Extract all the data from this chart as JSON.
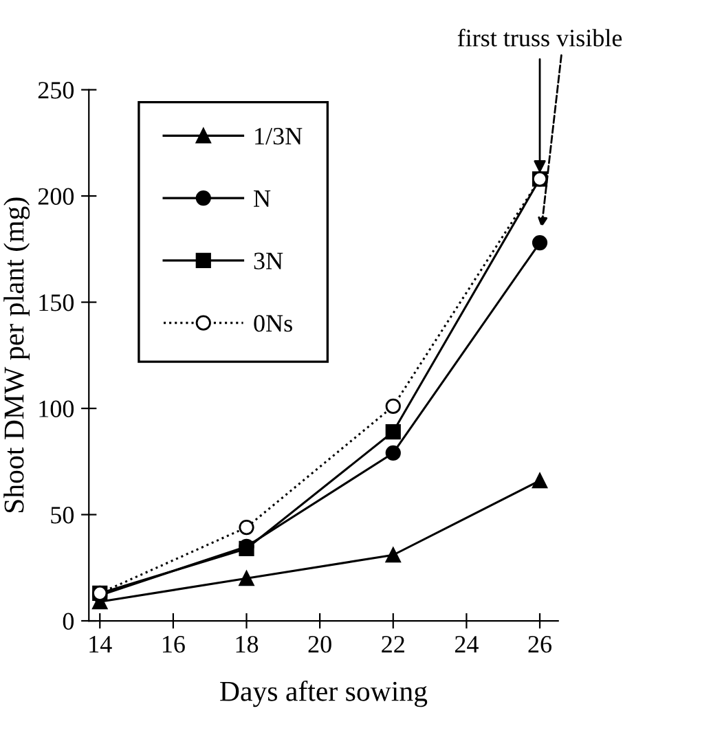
{
  "chart_data": {
    "type": "line",
    "xlabel": "Days after sowing",
    "ylabel": "Shoot DMW per plant (mg)",
    "x": [
      14,
      18,
      22,
      26
    ],
    "series": [
      {
        "name": "1/3N",
        "color": "#000000",
        "values": [
          9,
          20,
          31,
          66
        ],
        "marker": "triangle",
        "line_style": "solid"
      },
      {
        "name": "N",
        "color": "#000000",
        "values": [
          12,
          35,
          79,
          178
        ],
        "marker": "circle",
        "line_style": "solid"
      },
      {
        "name": "3N",
        "color": "#000000",
        "values": [
          13,
          34,
          89,
          208
        ],
        "marker": "square",
        "line_style": "solid"
      },
      {
        "name": "0Ns",
        "color": "#000000",
        "values": [
          13,
          44,
          101,
          208
        ],
        "marker": "circle",
        "line_style": "dotted"
      }
    ],
    "xlim": [
      13.7,
      26.5
    ],
    "ylim": [
      0,
      250
    ],
    "xticks": [
      14,
      16,
      18,
      20,
      22,
      24,
      26
    ],
    "yticks": [
      0,
      50,
      100,
      150,
      200,
      250
    ],
    "grid": false,
    "legend": "top left",
    "annotations": [
      {
        "text": "first truss visible",
        "x": 26,
        "y": 208
      }
    ]
  }
}
